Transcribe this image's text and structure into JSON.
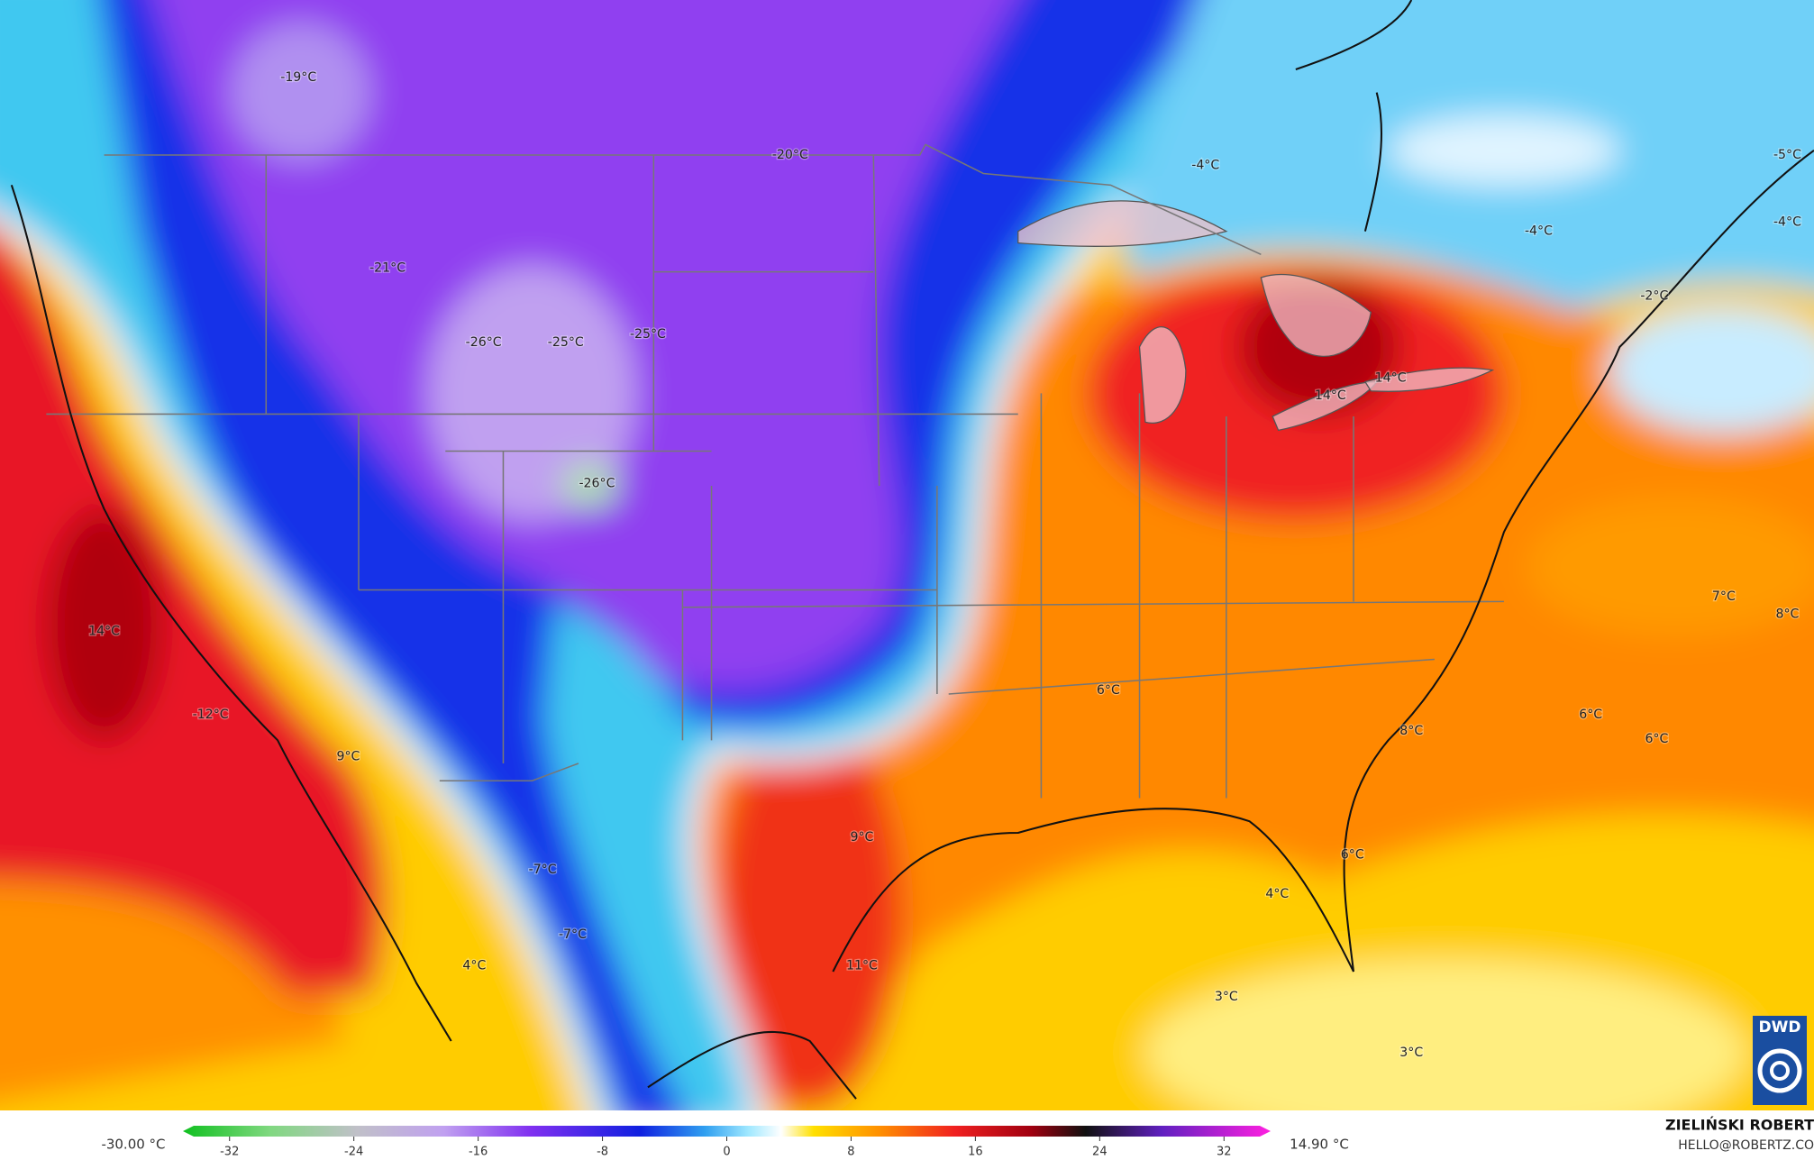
{
  "map": {
    "labels": [
      "-19°C",
      "-20°C",
      "-4°C",
      "-5°C",
      "-4°C",
      "-4°C",
      "-21°C",
      "-2°C",
      "-26°C",
      "-25°C",
      "-25°C",
      "14°C",
      "14°C",
      "-26°C",
      "14°C",
      "7°C",
      "8°C",
      "6°C",
      "-12°C",
      "6°C",
      "8°C",
      "6°C",
      "9°C",
      "9°C",
      "-7°C",
      "6°C",
      "4°C",
      "-7°C",
      "4°C",
      "11°C",
      "3°C",
      "3°C"
    ]
  },
  "colorbar": {
    "min_label": "-30.00 °C",
    "max_label": "14.90 °C",
    "lim": [
      -35,
      35
    ],
    "ticks": [
      -32,
      -24,
      -16,
      -8,
      0,
      8,
      16,
      24,
      32
    ]
  },
  "credit": {
    "author": "ZIELIŃSKI ROBERT",
    "contact": "HELLO@ROBERTZ.CO",
    "logo": "DWD"
  }
}
